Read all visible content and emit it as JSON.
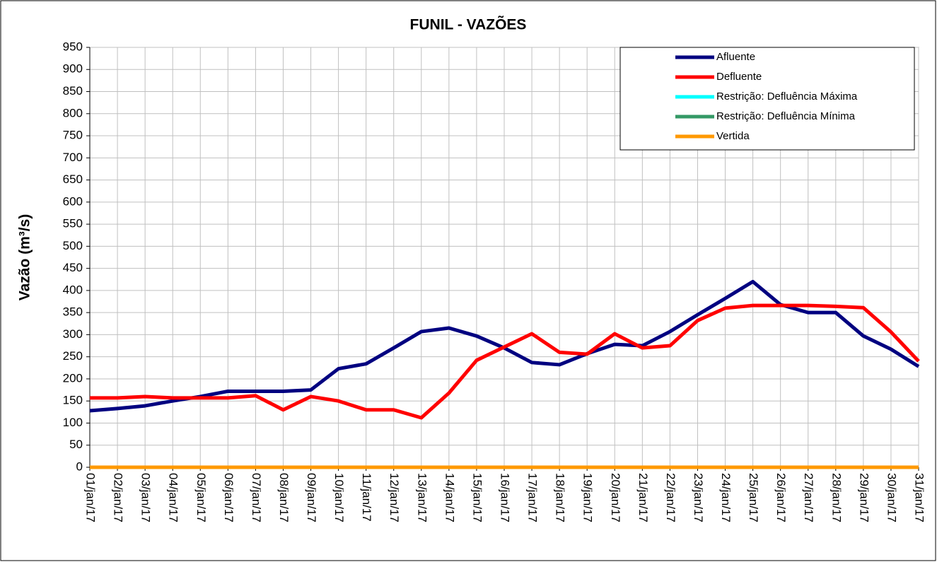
{
  "chart_data": {
    "type": "line",
    "title": "FUNIL - VAZÕES",
    "y_label": "Vazão (m³/s)",
    "categories": [
      "01/jan/17",
      "02/jan/17",
      "03/jan/17",
      "04/jan/17",
      "05/jan/17",
      "06/jan/17",
      "07/jan/17",
      "08/jan/17",
      "09/jan/17",
      "10/jan/17",
      "11/jan/17",
      "12/jan/17",
      "13/jan/17",
      "14/jan/17",
      "15/jan/17",
      "16/jan/17",
      "17/jan/17",
      "18/jan/17",
      "19/jan/17",
      "20/jan/17",
      "21/jan/17",
      "22/jan/17",
      "23/jan/17",
      "24/jan/17",
      "25/jan/17",
      "26/jan/17",
      "27/jan/17",
      "28/jan/17",
      "29/jan/17",
      "30/jan/17",
      "31/jan/17"
    ],
    "series": [
      {
        "name": "Afluente",
        "color": "#000080",
        "values": [
          128,
          133,
          139,
          150,
          160,
          172,
          172,
          172,
          175,
          223,
          234,
          270,
          307,
          315,
          297,
          270,
          237,
          232,
          257,
          278,
          275,
          307,
          345,
          382,
          420,
          368,
          350,
          350,
          297,
          267,
          228
        ]
      },
      {
        "name": "Defluente",
        "color": "#ff0000",
        "values": [
          157,
          157,
          160,
          157,
          157,
          157,
          162,
          130,
          160,
          150,
          130,
          130,
          112,
          168,
          242,
          272,
          302,
          260,
          256,
          302,
          270,
          275,
          332,
          360,
          366,
          366,
          366,
          364,
          361,
          306,
          240
        ]
      },
      {
        "name": "Restrição: Defluência Máxima",
        "color": "#00ffff",
        "values": [
          null,
          null,
          null,
          null,
          null,
          null,
          null,
          null,
          null,
          null,
          null,
          null,
          null,
          null,
          null,
          null,
          null,
          null,
          null,
          null,
          null,
          null,
          null,
          null,
          null,
          null,
          null,
          null,
          null,
          null,
          null
        ]
      },
      {
        "name": "Restrição: Defluência Mínima",
        "color": "#339966",
        "values": [
          null,
          null,
          null,
          null,
          null,
          null,
          null,
          null,
          null,
          null,
          null,
          null,
          null,
          null,
          null,
          null,
          null,
          null,
          null,
          null,
          null,
          null,
          null,
          null,
          null,
          null,
          null,
          null,
          null,
          null,
          null
        ]
      },
      {
        "name": "Vertida",
        "color": "#ff9900",
        "values": [
          0,
          0,
          0,
          0,
          0,
          0,
          0,
          0,
          0,
          0,
          0,
          0,
          0,
          0,
          0,
          0,
          0,
          0,
          0,
          0,
          0,
          0,
          0,
          0,
          0,
          0,
          0,
          0,
          0,
          0,
          0
        ]
      }
    ],
    "ylim": [
      0,
      950
    ],
    "yticks": [
      0,
      50,
      100,
      150,
      200,
      250,
      300,
      350,
      400,
      450,
      500,
      550,
      600,
      650,
      700,
      750,
      800,
      850,
      900,
      950
    ],
    "grid": true,
    "legend": "top-right"
  }
}
